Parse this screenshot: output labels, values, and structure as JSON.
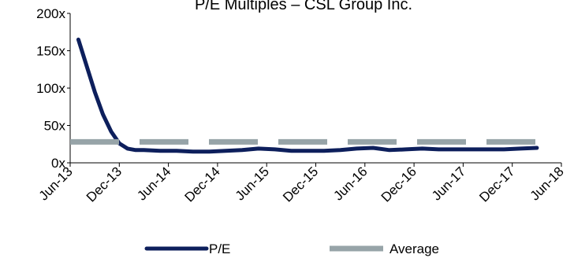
{
  "chart_data": {
    "type": "line",
    "title": "P/E Multiples – CSL Group Inc.",
    "xlabel": "",
    "ylabel": "",
    "y_tick_labels": [
      "0x",
      "50x",
      "100x",
      "150x",
      "200x"
    ],
    "y_ticks": [
      0,
      50,
      100,
      150,
      200
    ],
    "ylim": [
      0,
      200
    ],
    "x_tick_labels": [
      "Jun-13",
      "Dec-13",
      "Jun-14",
      "Dec-14",
      "Jun-15",
      "Dec-15",
      "Jun-16",
      "Dec-16",
      "Jun-17",
      "Dec-17",
      "Jun-18"
    ],
    "xlim": [
      "Jun-13",
      "Jun-18"
    ],
    "grid": false,
    "legend_position": "bottom",
    "series": [
      {
        "name": "P/E",
        "color": "#0d1f5c",
        "style": "solid",
        "x": [
          "Jul-13",
          "Aug-13",
          "Sep-13",
          "Oct-13",
          "Nov-13",
          "Dec-13",
          "Jan-14",
          "Feb-14",
          "Mar-14",
          "May-14",
          "Jul-14",
          "Sep-14",
          "Nov-14",
          "Jan-15",
          "Mar-15",
          "May-15",
          "Jul-15",
          "Sep-15",
          "Nov-15",
          "Jan-16",
          "Mar-16",
          "May-16",
          "Jul-16",
          "Sep-16",
          "Nov-16",
          "Jan-17",
          "Mar-17",
          "May-17",
          "Jul-17",
          "Sep-17",
          "Nov-17",
          "Jan-18",
          "Mar-18"
        ],
        "values": [
          165,
          130,
          95,
          65,
          42,
          26,
          19,
          17,
          17,
          16,
          16,
          15,
          15,
          16,
          17,
          19,
          18,
          16,
          16,
          16,
          17,
          19,
          20,
          17,
          18,
          19,
          18,
          18,
          18,
          18,
          18,
          19,
          20
        ]
      },
      {
        "name": "Average",
        "color": "#97a4a8",
        "style": "dashed",
        "x": [
          "Jun-13",
          "Mar-18"
        ],
        "values": [
          28,
          28
        ]
      }
    ]
  }
}
